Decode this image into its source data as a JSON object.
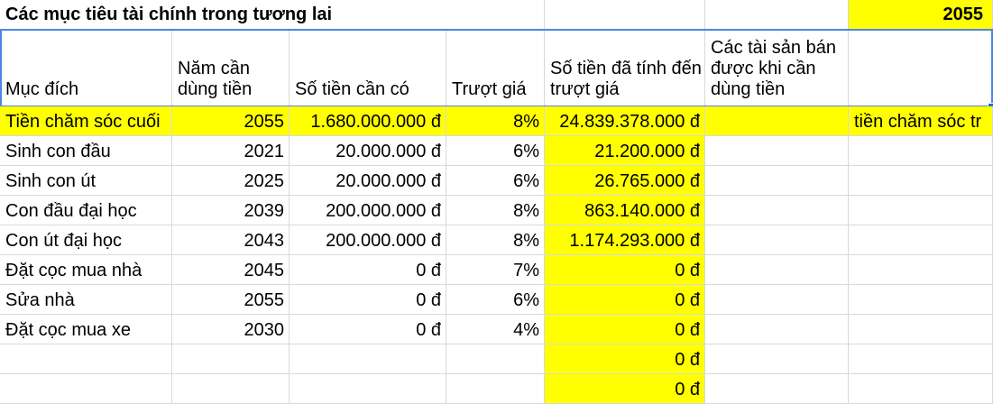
{
  "title_row": {
    "title": "Các mục tiêu tài chính trong tương lai",
    "year": "2055"
  },
  "headers": [
    "Mục đích",
    "Năm cần dùng tiền",
    "Số tiền cần có",
    "Trượt giá",
    "Số tiền đã tính đến trượt giá",
    "Các tài sản bán được khi cần dùng tiền",
    ""
  ],
  "rows": [
    [
      "Tiền chăm sóc cuối",
      "2055",
      "1.680.000.000 đ",
      "8%",
      "24.839.378.000 đ",
      "",
      "tiền chăm sóc tr"
    ],
    [
      "Sinh con đầu",
      "2021",
      "20.000.000 đ",
      "6%",
      "21.200.000 đ",
      "",
      ""
    ],
    [
      "Sinh con út",
      "2025",
      "20.000.000 đ",
      "6%",
      "26.765.000 đ",
      "",
      ""
    ],
    [
      "Con đầu đại học",
      "2039",
      "200.000.000 đ",
      "8%",
      "863.140.000 đ",
      "",
      ""
    ],
    [
      "Con út đại học",
      "2043",
      "200.000.000 đ",
      "8%",
      "1.174.293.000 đ",
      "",
      ""
    ],
    [
      "Đặt cọc mua nhà",
      "2045",
      "0 đ",
      "7%",
      "0 đ",
      "",
      ""
    ],
    [
      "Sửa nhà",
      "2055",
      "0 đ",
      "6%",
      "0 đ",
      "",
      ""
    ],
    [
      "Đặt cọc mua xe",
      "2030",
      "0 đ",
      "4%",
      "0 đ",
      "",
      ""
    ],
    [
      "",
      "",
      "",
      "",
      "0 đ",
      "",
      ""
    ],
    [
      "",
      "",
      "",
      "",
      "0 đ",
      "",
      ""
    ]
  ]
}
